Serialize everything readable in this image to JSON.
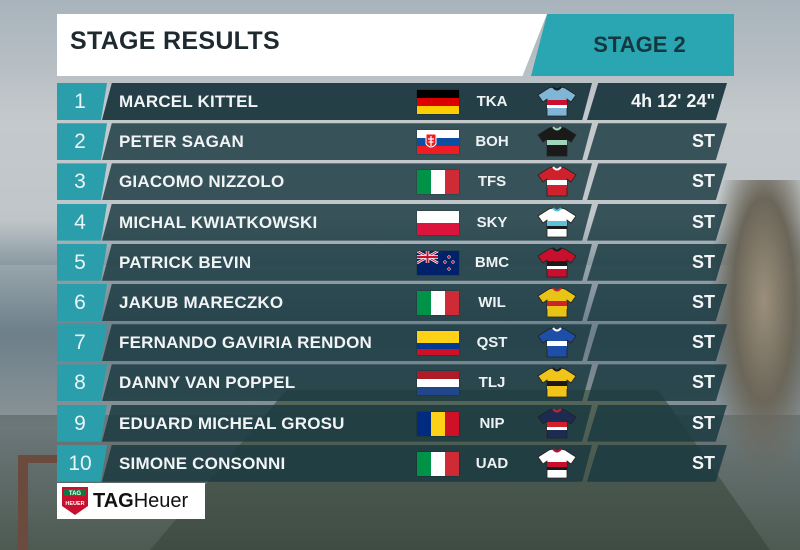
{
  "header": {
    "title": "STAGE RESULTS",
    "stage": "STAGE 2"
  },
  "results": [
    {
      "pos": "1",
      "name": "MARCEL KITTEL",
      "team": "TKA",
      "time": "4h 12' 24\"",
      "flag": "germany-flag",
      "jersey": "katusha-jersey"
    },
    {
      "pos": "2",
      "name": "PETER SAGAN",
      "team": "BOH",
      "time": "ST",
      "flag": "slovakia-flag",
      "jersey": "bora-jersey"
    },
    {
      "pos": "3",
      "name": "GIACOMO NIZZOLO",
      "team": "TFS",
      "time": "ST",
      "flag": "italy-flag",
      "jersey": "trek-jersey"
    },
    {
      "pos": "4",
      "name": "MICHAL KWIATKOWSKI",
      "team": "SKY",
      "time": "ST",
      "flag": "poland-flag",
      "jersey": "sky-jersey"
    },
    {
      "pos": "5",
      "name": "PATRICK BEVIN",
      "team": "BMC",
      "time": "ST",
      "flag": "new-zealand-flag",
      "jersey": "bmc-jersey"
    },
    {
      "pos": "6",
      "name": "JAKUB MARECZKO",
      "team": "WIL",
      "time": "ST",
      "flag": "italy-flag",
      "jersey": "wilier-jersey"
    },
    {
      "pos": "7",
      "name": "FERNANDO GAVIRIA RENDON",
      "team": "QST",
      "time": "ST",
      "flag": "colombia-flag",
      "jersey": "quickstep-jersey"
    },
    {
      "pos": "8",
      "name": "DANNY VAN POPPEL",
      "team": "TLJ",
      "time": "ST",
      "flag": "netherlands-flag",
      "jersey": "lottonl-jersey"
    },
    {
      "pos": "9",
      "name": "EDUARD MICHEAL GROSU",
      "team": "NIP",
      "time": "ST",
      "flag": "romania-flag",
      "jersey": "nippo-jersey"
    },
    {
      "pos": "10",
      "name": "SIMONE CONSONNI",
      "team": "UAD",
      "time": "ST",
      "flag": "italy-flag",
      "jersey": "uae-jersey"
    }
  ],
  "sponsor": {
    "brand_a": "TAG",
    "brand_b": "Heuer",
    "logo_top": "TAG",
    "logo_bottom": "HEUER"
  },
  "colors": {
    "accent": "#2aa6b3",
    "row_bg": "#183840",
    "header_bg": "#ffffff"
  }
}
